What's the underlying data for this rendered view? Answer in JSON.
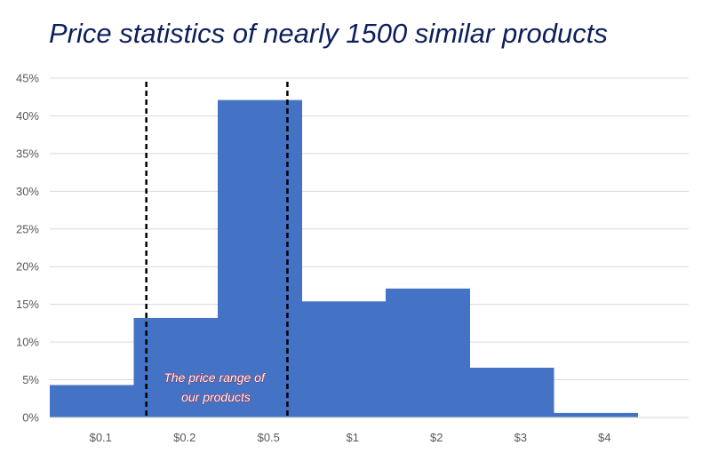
{
  "chart_data": {
    "type": "bar",
    "title": "Price statistics of nearly 1500 similar products",
    "xlabel": "",
    "ylabel": "",
    "categories": [
      "$0.1",
      "$0.2",
      "$0.5",
      "$1",
      "$2",
      "$3",
      "$4"
    ],
    "values": [
      4.3,
      13.2,
      42.1,
      15.4,
      17.1,
      6.6,
      0.6
    ],
    "y_unit": "%",
    "ylim": [
      0,
      45
    ],
    "yticks": [
      0,
      5,
      10,
      15,
      20,
      25,
      30,
      35,
      40,
      45
    ],
    "ytick_labels": [
      "0%",
      "5%",
      "10%",
      "15%",
      "20%",
      "25%",
      "30%",
      "35%",
      "40%",
      "45%"
    ],
    "grid": true,
    "bar_color": "#4472c4",
    "reference_lines": [
      {
        "style": "dashed",
        "color": "#000000",
        "position_bins": 1.15
      },
      {
        "style": "dashed",
        "color": "#000000",
        "position_bins": 2.83
      }
    ],
    "annotation": {
      "lines": [
        "The price range of",
        "our products"
      ],
      "color": "#c00000"
    }
  }
}
